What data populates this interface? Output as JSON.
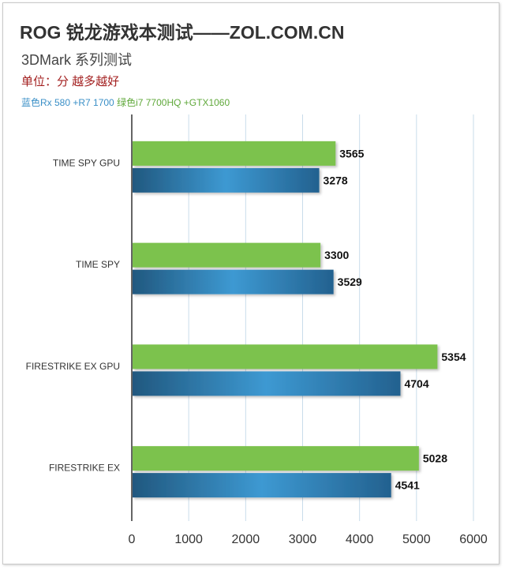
{
  "chart_data": {
    "type": "bar",
    "orientation": "horizontal",
    "title": "ROG 锐龙游戏本测试——ZOL.COM.CN",
    "subtitle": "3DMark 系列测试",
    "unit_note": "单位：分 越多越好",
    "categories": [
      "TIME SPY GPU",
      "TIME SPY",
      "FIRESTRIKE EX GPU",
      "FIRESTRIKE EX"
    ],
    "series": [
      {
        "name": "绿色i7 7700HQ +GTX1060",
        "color": "#7cc24e",
        "values": [
          3565,
          3300,
          5354,
          5028
        ]
      },
      {
        "name": "蓝色Rx 580 +R7 1700",
        "color": "#2f7fb5",
        "values": [
          3278,
          3529,
          4704,
          4541
        ]
      }
    ],
    "legend_text": {
      "blue": "蓝色Rx 580 +R7 1700",
      "green": "绿色i7 7700HQ +GTX1060"
    },
    "xlim": [
      0,
      6000
    ],
    "xticks": [
      0,
      1000,
      2000,
      3000,
      4000,
      5000,
      6000
    ],
    "grid": true,
    "legend_position": "top-left"
  }
}
